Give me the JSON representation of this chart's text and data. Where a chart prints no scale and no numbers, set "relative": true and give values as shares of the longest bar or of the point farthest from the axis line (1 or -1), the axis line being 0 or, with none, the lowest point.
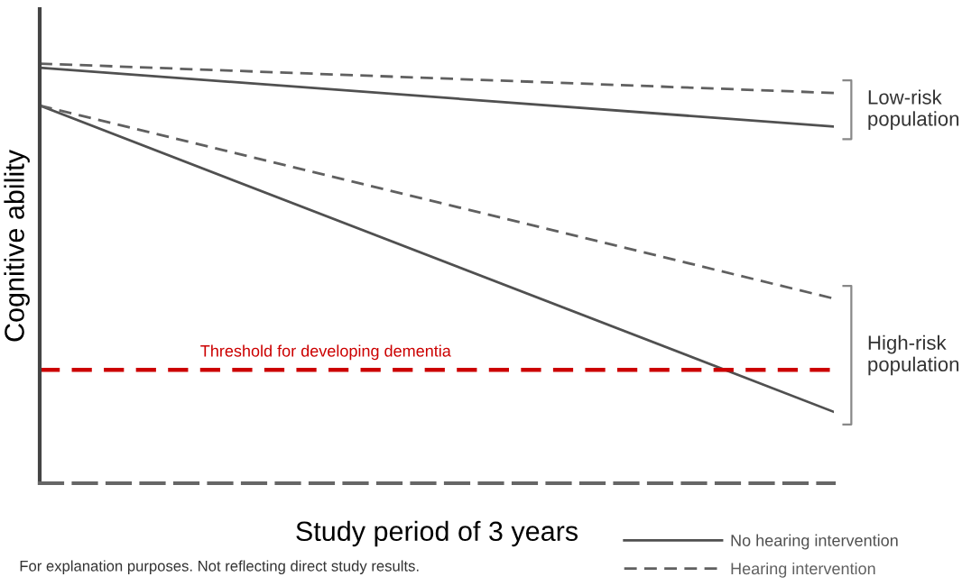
{
  "chart_data": {
    "type": "line",
    "relative": true,
    "xlabel": "Study period of 3 years",
    "ylabel": "Cognitive ability",
    "categories": [
      null,
      null
    ],
    "series": [
      {
        "name": "No hearing intervention",
        "color": "#505050",
        "line_style": "solid",
        "values": [
          0.99,
          0.85
        ]
      },
      {
        "name": "Hearing intervention",
        "color": "#606060",
        "line_style": "dashed",
        "values": [
          1,
          0.93
        ]
      },
      {
        "color": "#505050",
        "line_style": "solid",
        "values": [
          0.9,
          0.17
        ]
      },
      {
        "color": "#606060",
        "line_style": "dashed",
        "values": [
          0.9,
          0.44
        ]
      }
    ],
    "ref_lines": [
      {
        "axis": "y",
        "value": 0.27,
        "label": "Threshold for developing dementia",
        "color": "#cc0000",
        "line_style": "dashed"
      }
    ],
    "annotations": [
      "Low-risk population",
      "High-risk population",
      "For explanation purposes. Not reflecting direct study results."
    ],
    "legend": "bottom right",
    "grid": false,
    "marker": "none"
  }
}
